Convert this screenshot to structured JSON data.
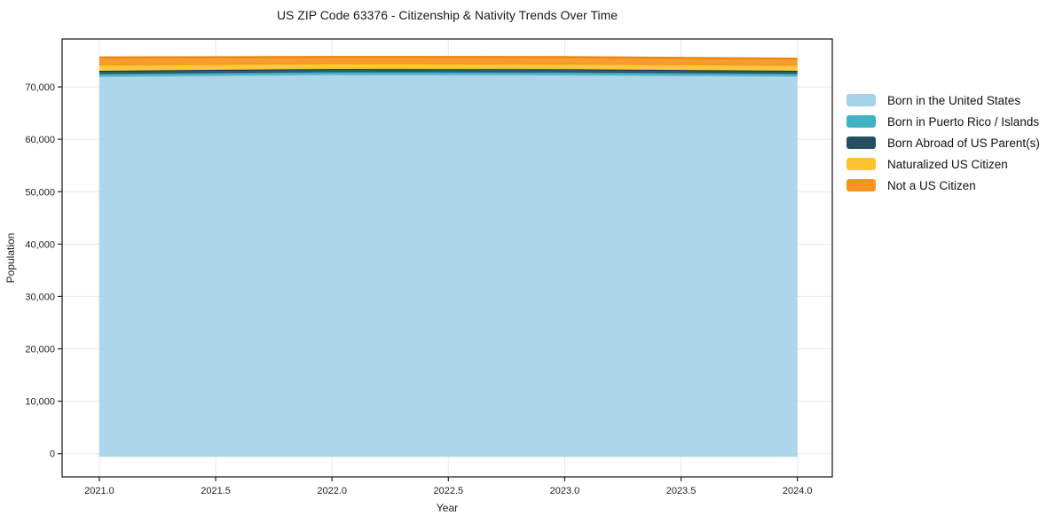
{
  "page": {
    "background_color": "#ffffff"
  },
  "chart_data": {
    "type": "area",
    "stacked": true,
    "title": "US ZIP Code 63376 - Citizenship & Nativity Trends Over Time",
    "xlabel": "Year",
    "ylabel": "Population",
    "x": [
      2021,
      2022,
      2023,
      2024
    ],
    "series": [
      {
        "name": "Born in the United States",
        "color": "#a6d2e8",
        "line_color": "#8cc2dc",
        "values": [
          72000,
          72350,
          72300,
          72050
        ]
      },
      {
        "name": "Born in Puerto Rico / Islands",
        "color": "#41b2c5",
        "line_color": "#2b9db3",
        "values": [
          480,
          500,
          490,
          470
        ]
      },
      {
        "name": "Born Abroad of US Parent(s)",
        "color": "#254e63",
        "line_color": "#17394a",
        "values": [
          570,
          550,
          560,
          540
        ]
      },
      {
        "name": "Naturalized US Citizen",
        "color": "#fdc331",
        "line_color": "#efaf1b",
        "values": [
          1150,
          1050,
          1020,
          1100
        ]
      },
      {
        "name": "Not a US Citizen",
        "color": "#f7941e",
        "line_color": "#e8830d",
        "values": [
          1450,
          1300,
          1350,
          1250
        ]
      }
    ],
    "xticks": [
      2021.0,
      2021.5,
      2022.0,
      2022.5,
      2023.0,
      2023.5,
      2024.0
    ],
    "yticks": [
      0,
      10000,
      20000,
      30000,
      40000,
      50000,
      60000,
      70000
    ],
    "xlim": [
      2020.84,
      2024.15
    ],
    "ylim": [
      -4450,
      79150
    ],
    "grid": true,
    "grid_color": "#e7e7ee",
    "axis_color": "#222222",
    "legend_position": "right"
  }
}
